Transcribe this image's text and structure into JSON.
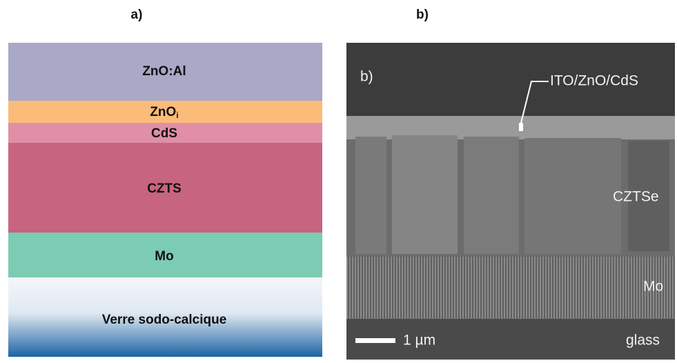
{
  "panel_a": {
    "label": "a)",
    "layers": [
      {
        "name": "ZnO:Al"
      },
      {
        "name": "ZnO",
        "subscript": "i"
      },
      {
        "name": "CdS"
      },
      {
        "name": "CZTS"
      },
      {
        "name": "Mo"
      },
      {
        "name": "Verre sodo-calcique"
      }
    ]
  },
  "panel_b": {
    "label": "b)",
    "inset_label": "b)",
    "annotations": {
      "top": "ITO/ZnO/CdS",
      "absorber": "CZTSe",
      "back": "Mo",
      "substrate": "glass",
      "scale": "1 µm"
    }
  }
}
